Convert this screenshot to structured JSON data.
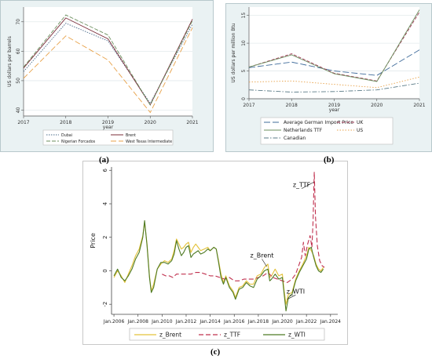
{
  "panel_labels": [
    "(a)",
    "(b)",
    "(c)"
  ],
  "chart_data": [
    {
      "type": "line",
      "panel": "(a)",
      "ylabel": "US dollars per barrels",
      "xlabel": "year",
      "x": [
        2017,
        2018,
        2019,
        2020,
        2021
      ],
      "xticks": [
        "2017",
        "2018",
        "2019",
        "2020",
        "2021"
      ],
      "yticks": [
        "40",
        "50",
        "60",
        "70"
      ],
      "ylim": [
        38,
        75
      ],
      "grid": true,
      "legend_position": "bottom",
      "series": [
        {
          "name": "Dubai",
          "color": "#4a6b8a",
          "dash": "1.5,1.5",
          "values": [
            53.1,
            69.5,
            63.5,
            42.3,
            69.2
          ]
        },
        {
          "name": "Brent",
          "color": "#7b2d3a",
          "dash": "",
          "values": [
            54.3,
            71.3,
            64.2,
            41.8,
            70.9
          ]
        },
        {
          "name": "Nigerian Forcados",
          "color": "#6b8f5e",
          "dash": "5,2",
          "values": [
            54.6,
            72.3,
            65.5,
            41.7,
            70.4
          ]
        },
        {
          "name": "West Texas Intermediate",
          "color": "#e8a24a",
          "dash": "7,3",
          "values": [
            50.8,
            65.2,
            57.0,
            39.2,
            68.0
          ]
        }
      ]
    },
    {
      "type": "line",
      "panel": "(b)",
      "ylabel": "US dollars per million Btu",
      "xlabel": "year",
      "x": [
        2017,
        2018,
        2019,
        2020,
        2021
      ],
      "xticks": [
        "2017",
        "2018",
        "2019",
        "2020",
        "2021"
      ],
      "yticks": [
        "0",
        "5",
        "10",
        "15"
      ],
      "ylim": [
        0,
        16.5
      ],
      "grid": true,
      "legend_position": "bottom",
      "series": [
        {
          "name": "Average German Import Price",
          "color": "#3f6b9a",
          "dash": "8,3",
          "values": [
            5.6,
            6.6,
            5.0,
            4.2,
            8.8
          ]
        },
        {
          "name": "UK",
          "color": "#a03a56",
          "dash": "4,2",
          "values": [
            5.7,
            8.1,
            4.6,
            3.2,
            15.6
          ]
        },
        {
          "name": "Netherlands TTF",
          "color": "#6b8f5e",
          "dash": "",
          "values": [
            5.7,
            7.9,
            4.5,
            3.1,
            16.0
          ]
        },
        {
          "name": "US",
          "color": "#e8a24a",
          "dash": "1.5,2",
          "values": [
            3.0,
            3.2,
            2.6,
            2.0,
            3.9
          ]
        },
        {
          "name": "Canadian",
          "color": "#5a7a86",
          "dash": "6,2,1.5,2",
          "values": [
            1.6,
            1.2,
            1.3,
            1.6,
            2.8
          ]
        }
      ]
    },
    {
      "type": "line",
      "panel": "(c)",
      "ylabel": "Price",
      "xlabel": "",
      "xlim": [
        2005.8,
        2024.6
      ],
      "ylim": [
        -2.6,
        6.2
      ],
      "xticks": [
        {
          "value": 2006,
          "label": "Jan.2006"
        },
        {
          "value": 2008,
          "label": "Jan.2008"
        },
        {
          "value": 2010,
          "label": "Jan.2010"
        },
        {
          "value": 2012,
          "label": "Jan.2012"
        },
        {
          "value": 2014,
          "label": "Jan.2014"
        },
        {
          "value": 2016,
          "label": "Jan.2016"
        },
        {
          "value": 2018,
          "label": "Jan.2018"
        },
        {
          "value": 2020,
          "label": "Jan.2020"
        },
        {
          "value": 2022,
          "label": "Jan.2022"
        },
        {
          "value": 2024,
          "label": "Jan.2024"
        }
      ],
      "yticks": [
        {
          "value": -2,
          "label": "-2"
        },
        {
          "value": 0,
          "label": "0"
        },
        {
          "value": 2,
          "label": "2"
        },
        {
          "value": 4,
          "label": "4"
        },
        {
          "value": 6,
          "label": "6"
        }
      ],
      "grid": false,
      "legend_position": "bottom",
      "annotations": [
        {
          "text": "z_TTF",
          "x": 2021.6,
          "y": 5.0
        },
        {
          "text": "z_Brent",
          "x": 2018.3,
          "y": 0.8
        },
        {
          "text": "z_WTI",
          "x": 2021.1,
          "y": -1.35
        }
      ],
      "series": [
        {
          "name": "z_Brent",
          "color": "#e3c23a",
          "dash": "",
          "points": [
            [
              2006.0,
              -0.4
            ],
            [
              2006.3,
              0.0
            ],
            [
              2006.6,
              -0.3
            ],
            [
              2006.9,
              -0.7
            ],
            [
              2007.2,
              -0.2
            ],
            [
              2007.5,
              0.3
            ],
            [
              2007.8,
              0.9
            ],
            [
              2008.1,
              1.3
            ],
            [
              2008.4,
              2.1
            ],
            [
              2008.55,
              2.9
            ],
            [
              2008.75,
              1.6
            ],
            [
              2008.95,
              -0.3
            ],
            [
              2009.1,
              -1.2
            ],
            [
              2009.3,
              -0.8
            ],
            [
              2009.6,
              0.1
            ],
            [
              2009.9,
              0.4
            ],
            [
              2010.2,
              0.6
            ],
            [
              2010.5,
              0.5
            ],
            [
              2010.8,
              0.7
            ],
            [
              2011.0,
              1.2
            ],
            [
              2011.2,
              1.9
            ],
            [
              2011.4,
              1.6
            ],
            [
              2011.6,
              1.3
            ],
            [
              2011.8,
              1.4
            ],
            [
              2012.0,
              1.6
            ],
            [
              2012.2,
              1.7
            ],
            [
              2012.4,
              1.1
            ],
            [
              2012.6,
              1.4
            ],
            [
              2012.8,
              1.6
            ],
            [
              2013.0,
              1.4
            ],
            [
              2013.2,
              1.2
            ],
            [
              2013.5,
              1.3
            ],
            [
              2013.8,
              1.4
            ],
            [
              2014.0,
              1.2
            ],
            [
              2014.3,
              1.4
            ],
            [
              2014.5,
              1.3
            ],
            [
              2014.7,
              0.6
            ],
            [
              2014.9,
              -0.2
            ],
            [
              2015.1,
              -0.7
            ],
            [
              2015.3,
              -0.3
            ],
            [
              2015.6,
              -0.9
            ],
            [
              2015.9,
              -1.2
            ],
            [
              2016.1,
              -1.6
            ],
            [
              2016.4,
              -1.0
            ],
            [
              2016.7,
              -0.9
            ],
            [
              2017.0,
              -0.6
            ],
            [
              2017.3,
              -0.8
            ],
            [
              2017.6,
              -0.8
            ],
            [
              2017.9,
              -0.3
            ],
            [
              2018.2,
              -0.2
            ],
            [
              2018.5,
              0.2
            ],
            [
              2018.8,
              0.4
            ],
            [
              2018.95,
              -0.4
            ],
            [
              2019.1,
              -0.3
            ],
            [
              2019.4,
              0.1
            ],
            [
              2019.7,
              -0.3
            ],
            [
              2020.0,
              -0.2
            ],
            [
              2020.15,
              -1.2
            ],
            [
              2020.3,
              -2.0
            ],
            [
              2020.5,
              -1.4
            ],
            [
              2020.8,
              -1.3
            ],
            [
              2021.1,
              -0.5
            ],
            [
              2021.4,
              0.0
            ],
            [
              2021.7,
              0.4
            ],
            [
              2022.0,
              0.9
            ],
            [
              2022.2,
              1.4
            ],
            [
              2022.4,
              1.2
            ],
            [
              2022.6,
              0.9
            ],
            [
              2022.8,
              0.4
            ],
            [
              2023.0,
              0.1
            ],
            [
              2023.2,
              0.0
            ],
            [
              2023.4,
              0.2
            ]
          ]
        },
        {
          "name": "z_TTF",
          "color": "#c0304e",
          "dash": "6,3",
          "points": [
            [
              2010.0,
              -0.2
            ],
            [
              2010.3,
              -0.3
            ],
            [
              2010.6,
              -0.3
            ],
            [
              2010.9,
              -0.4
            ],
            [
              2011.2,
              -0.2
            ],
            [
              2011.6,
              -0.2
            ],
            [
              2012.0,
              -0.2
            ],
            [
              2012.4,
              -0.2
            ],
            [
              2012.8,
              -0.1
            ],
            [
              2013.2,
              -0.1
            ],
            [
              2013.6,
              -0.2
            ],
            [
              2014.0,
              -0.3
            ],
            [
              2014.4,
              -0.3
            ],
            [
              2014.8,
              -0.4
            ],
            [
              2015.2,
              -0.5
            ],
            [
              2015.6,
              -0.4
            ],
            [
              2016.0,
              -0.6
            ],
            [
              2016.4,
              -0.6
            ],
            [
              2016.8,
              -0.5
            ],
            [
              2017.2,
              -0.5
            ],
            [
              2017.6,
              -0.5
            ],
            [
              2018.0,
              -0.4
            ],
            [
              2018.4,
              -0.3
            ],
            [
              2018.8,
              -0.1
            ],
            [
              2019.2,
              -0.4
            ],
            [
              2019.6,
              -0.5
            ],
            [
              2020.0,
              -0.6
            ],
            [
              2020.4,
              -0.7
            ],
            [
              2020.8,
              -0.5
            ],
            [
              2021.1,
              -0.2
            ],
            [
              2021.4,
              0.4
            ],
            [
              2021.6,
              0.8
            ],
            [
              2021.75,
              1.7
            ],
            [
              2021.9,
              0.9
            ],
            [
              2022.1,
              1.6
            ],
            [
              2022.3,
              2.1
            ],
            [
              2022.45,
              1.4
            ],
            [
              2022.55,
              3.0
            ],
            [
              2022.65,
              5.9
            ],
            [
              2022.75,
              3.2
            ],
            [
              2022.9,
              1.5
            ],
            [
              2023.1,
              0.6
            ],
            [
              2023.3,
              0.3
            ],
            [
              2023.5,
              0.2
            ]
          ]
        },
        {
          "name": "z_WTI",
          "color": "#4e7a24",
          "dash": "",
          "points": [
            [
              2006.0,
              -0.3
            ],
            [
              2006.3,
              0.1
            ],
            [
              2006.6,
              -0.4
            ],
            [
              2006.9,
              -0.6
            ],
            [
              2007.2,
              -0.3
            ],
            [
              2007.5,
              0.1
            ],
            [
              2007.8,
              0.7
            ],
            [
              2008.1,
              1.1
            ],
            [
              2008.4,
              2.0
            ],
            [
              2008.55,
              3.0
            ],
            [
              2008.75,
              1.5
            ],
            [
              2008.95,
              -0.4
            ],
            [
              2009.1,
              -1.3
            ],
            [
              2009.3,
              -1.0
            ],
            [
              2009.6,
              0.1
            ],
            [
              2009.9,
              0.5
            ],
            [
              2010.2,
              0.5
            ],
            [
              2010.5,
              0.4
            ],
            [
              2010.8,
              0.6
            ],
            [
              2011.0,
              1.0
            ],
            [
              2011.2,
              1.8
            ],
            [
              2011.4,
              1.3
            ],
            [
              2011.6,
              0.9
            ],
            [
              2011.8,
              1.1
            ],
            [
              2012.0,
              1.4
            ],
            [
              2012.2,
              1.5
            ],
            [
              2012.4,
              0.8
            ],
            [
              2012.6,
              1.0
            ],
            [
              2012.8,
              1.1
            ],
            [
              2013.0,
              1.2
            ],
            [
              2013.2,
              1.0
            ],
            [
              2013.5,
              1.1
            ],
            [
              2013.8,
              1.3
            ],
            [
              2014.0,
              1.2
            ],
            [
              2014.3,
              1.4
            ],
            [
              2014.5,
              1.3
            ],
            [
              2014.7,
              0.5
            ],
            [
              2014.9,
              -0.4
            ],
            [
              2015.1,
              -0.8
            ],
            [
              2015.3,
              -0.4
            ],
            [
              2015.6,
              -1.0
            ],
            [
              2015.9,
              -1.3
            ],
            [
              2016.1,
              -1.7
            ],
            [
              2016.4,
              -1.1
            ],
            [
              2016.7,
              -1.0
            ],
            [
              2017.0,
              -0.7
            ],
            [
              2017.3,
              -0.9
            ],
            [
              2017.6,
              -1.0
            ],
            [
              2017.9,
              -0.5
            ],
            [
              2018.2,
              -0.3
            ],
            [
              2018.5,
              0.0
            ],
            [
              2018.8,
              0.1
            ],
            [
              2018.95,
              -0.6
            ],
            [
              2019.1,
              -0.5
            ],
            [
              2019.4,
              -0.2
            ],
            [
              2019.7,
              -0.5
            ],
            [
              2020.0,
              -0.4
            ],
            [
              2020.15,
              -1.4
            ],
            [
              2020.3,
              -2.4
            ],
            [
              2020.5,
              -1.6
            ],
            [
              2020.8,
              -1.4
            ],
            [
              2021.1,
              -0.6
            ],
            [
              2021.4,
              -0.1
            ],
            [
              2021.7,
              0.3
            ],
            [
              2022.0,
              0.7
            ],
            [
              2022.2,
              1.3
            ],
            [
              2022.4,
              1.4
            ],
            [
              2022.6,
              0.8
            ],
            [
              2022.8,
              0.3
            ],
            [
              2023.0,
              0.0
            ],
            [
              2023.2,
              -0.1
            ],
            [
              2023.4,
              0.1
            ]
          ]
        }
      ]
    }
  ]
}
